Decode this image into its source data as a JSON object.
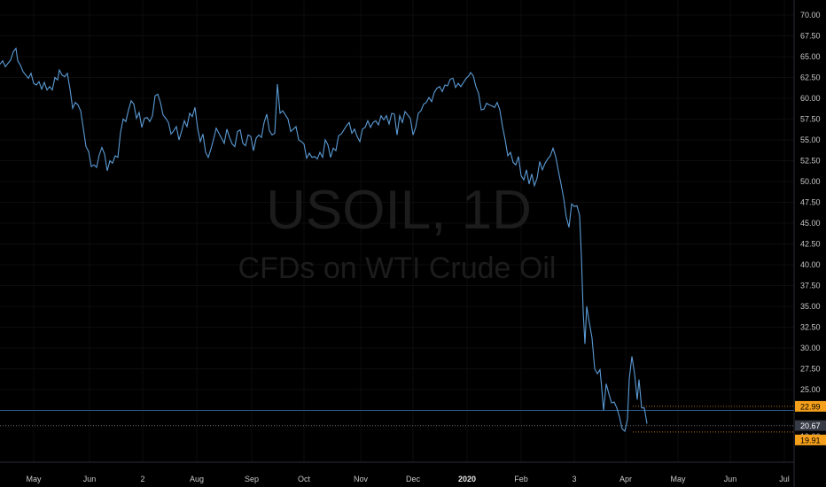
{
  "watermark": {
    "symbol": "USOIL, 1D",
    "description": "CFDs on WTI Crude Oil"
  },
  "colors": {
    "background": "#000000",
    "line": "#5b9bd5",
    "grid": "#0d0d0d",
    "axis_text": "#c8c8c8",
    "badge_orange": "#f5a01a",
    "badge_gray": "#363a45",
    "ray_blue": "#2a5a8f",
    "ray_orange": "#b86e14"
  },
  "chart_data": {
    "type": "line",
    "series": [
      {
        "values": [
          [
            0,
            64.1
          ],
          [
            3,
            64.5
          ],
          [
            6,
            63.8
          ],
          [
            9,
            64.2
          ],
          [
            12,
            64.6
          ],
          [
            15,
            65.6
          ],
          [
            18,
            66.0
          ],
          [
            20,
            64.5
          ],
          [
            23,
            64.0
          ],
          [
            26,
            63.2
          ],
          [
            29,
            62.8
          ],
          [
            32,
            62.4
          ],
          [
            35,
            63.0
          ],
          [
            38,
            61.8
          ],
          [
            41,
            61.6
          ],
          [
            44,
            62.0
          ],
          [
            47,
            61.1
          ],
          [
            50,
            61.9
          ],
          [
            53,
            61.0
          ],
          [
            56,
            61.4
          ],
          [
            59,
            61.0
          ],
          [
            62,
            62.5
          ],
          [
            65,
            62.2
          ],
          [
            67,
            63.4
          ],
          [
            70,
            62.8
          ],
          [
            73,
            62.6
          ],
          [
            76,
            63.0
          ],
          [
            79,
            61.1
          ],
          [
            82,
            58.8
          ],
          [
            85,
            59.5
          ],
          [
            88,
            59.2
          ],
          [
            91,
            58.5
          ],
          [
            94,
            56.4
          ],
          [
            97,
            54.2
          ],
          [
            100,
            53.6
          ],
          [
            103,
            51.8
          ],
          [
            106,
            52.0
          ],
          [
            109,
            51.7
          ],
          [
            112,
            53.2
          ],
          [
            115,
            54.1
          ],
          [
            118,
            53.3
          ],
          [
            121,
            51.3
          ],
          [
            124,
            52.5
          ],
          [
            127,
            52.2
          ],
          [
            130,
            53.1
          ],
          [
            133,
            52.9
          ],
          [
            136,
            55.9
          ],
          [
            139,
            57.5
          ],
          [
            142,
            57.2
          ],
          [
            145,
            58.6
          ],
          [
            148,
            59.7
          ],
          [
            151,
            59.3
          ],
          [
            154,
            57.6
          ],
          [
            157,
            58.3
          ],
          [
            160,
            56.5
          ],
          [
            163,
            57.6
          ],
          [
            166,
            57.7
          ],
          [
            169,
            57.2
          ],
          [
            172,
            57.9
          ],
          [
            175,
            60.3
          ],
          [
            178,
            60.5
          ],
          [
            181,
            59.5
          ],
          [
            184,
            58.0
          ],
          [
            187,
            57.6
          ],
          [
            190,
            57.1
          ],
          [
            193,
            55.7
          ],
          [
            196,
            56.1
          ],
          [
            199,
            56.6
          ],
          [
            202,
            55.0
          ],
          [
            205,
            56.1
          ],
          [
            208,
            57.3
          ],
          [
            211,
            56.6
          ],
          [
            214,
            58.2
          ],
          [
            217,
            57.8
          ],
          [
            220,
            58.9
          ],
          [
            223,
            56.4
          ],
          [
            226,
            54.8
          ],
          [
            229,
            55.7
          ],
          [
            232,
            53.5
          ],
          [
            235,
            52.9
          ],
          [
            238,
            53.9
          ],
          [
            241,
            55.1
          ],
          [
            244,
            56.4
          ],
          [
            247,
            55.8
          ],
          [
            250,
            55.2
          ],
          [
            253,
            54.6
          ],
          [
            256,
            56.3
          ],
          [
            259,
            55.3
          ],
          [
            262,
            54.5
          ],
          [
            265,
            54.2
          ],
          [
            268,
            56.0
          ],
          [
            271,
            56.2
          ],
          [
            274,
            54.6
          ],
          [
            277,
            54.3
          ],
          [
            280,
            55.6
          ],
          [
            283,
            55.4
          ],
          [
            286,
            53.7
          ],
          [
            289,
            55.2
          ],
          [
            292,
            55.6
          ],
          [
            295,
            55.3
          ],
          [
            298,
            57.1
          ],
          [
            301,
            58.1
          ],
          [
            304,
            56.1
          ],
          [
            307,
            55.6
          ],
          [
            310,
            55.8
          ],
          [
            313,
            61.7
          ],
          [
            316,
            58.2
          ],
          [
            319,
            58.5
          ],
          [
            322,
            58.0
          ],
          [
            325,
            57.5
          ],
          [
            328,
            56.0
          ],
          [
            331,
            56.3
          ],
          [
            334,
            56.6
          ],
          [
            337,
            55.0
          ],
          [
            340,
            54.8
          ],
          [
            343,
            54.5
          ],
          [
            346,
            52.8
          ],
          [
            349,
            53.4
          ],
          [
            352,
            52.9
          ],
          [
            355,
            53.0
          ],
          [
            358,
            52.7
          ],
          [
            361,
            53.5
          ],
          [
            364,
            52.9
          ],
          [
            367,
            55.0
          ],
          [
            370,
            54.4
          ],
          [
            373,
            52.9
          ],
          [
            376,
            54.0
          ],
          [
            379,
            53.7
          ],
          [
            382,
            55.5
          ],
          [
            385,
            55.7
          ],
          [
            388,
            56.2
          ],
          [
            391,
            56.7
          ],
          [
            394,
            57.1
          ],
          [
            397,
            55.8
          ],
          [
            400,
            56.3
          ],
          [
            403,
            55.4
          ],
          [
            406,
            54.8
          ],
          [
            409,
            56.3
          ],
          [
            412,
            56.5
          ],
          [
            415,
            57.3
          ],
          [
            418,
            56.5
          ],
          [
            421,
            57.1
          ],
          [
            424,
            57.3
          ],
          [
            427,
            56.8
          ],
          [
            430,
            57.9
          ],
          [
            433,
            57.4
          ],
          [
            436,
            57.9
          ],
          [
            439,
            56.9
          ],
          [
            442,
            58.2
          ],
          [
            445,
            58.1
          ],
          [
            448,
            55.6
          ],
          [
            451,
            57.9
          ],
          [
            454,
            57.1
          ],
          [
            457,
            58.4
          ],
          [
            460,
            58.0
          ],
          [
            463,
            57.6
          ],
          [
            466,
            55.6
          ],
          [
            469,
            56.5
          ],
          [
            472,
            58.2
          ],
          [
            475,
            58.5
          ],
          [
            478,
            59.3
          ],
          [
            481,
            59.5
          ],
          [
            484,
            60.1
          ],
          [
            487,
            59.6
          ],
          [
            490,
            60.7
          ],
          [
            493,
            61.2
          ],
          [
            496,
            61.4
          ],
          [
            499,
            60.8
          ],
          [
            502,
            61.6
          ],
          [
            505,
            61.5
          ],
          [
            508,
            62.3
          ],
          [
            511,
            62.4
          ],
          [
            514,
            61.3
          ],
          [
            517,
            61.8
          ],
          [
            520,
            61.4
          ],
          [
            523,
            61.9
          ],
          [
            526,
            62.4
          ],
          [
            529,
            62.7
          ],
          [
            531,
            63.1
          ],
          [
            534,
            62.7
          ],
          [
            537,
            61.4
          ],
          [
            540,
            60.6
          ],
          [
            543,
            58.6
          ],
          [
            546,
            58.7
          ],
          [
            549,
            59.4
          ],
          [
            552,
            59.2
          ],
          [
            555,
            59.1
          ],
          [
            558,
            58.9
          ],
          [
            561,
            59.5
          ],
          [
            564,
            58.6
          ],
          [
            567,
            56.6
          ],
          [
            570,
            55.0
          ],
          [
            573,
            53.1
          ],
          [
            576,
            53.5
          ],
          [
            579,
            52.3
          ],
          [
            582,
            52.0
          ],
          [
            585,
            53.0
          ],
          [
            588,
            50.7
          ],
          [
            591,
            50.2
          ],
          [
            594,
            51.4
          ],
          [
            597,
            49.7
          ],
          [
            600,
            50.9
          ],
          [
            603,
            49.5
          ],
          [
            606,
            50.4
          ],
          [
            609,
            52.4
          ],
          [
            612,
            51.4
          ],
          [
            615,
            52.2
          ],
          [
            618,
            52.7
          ],
          [
            621,
            53.1
          ],
          [
            624,
            54.0
          ],
          [
            627,
            53.0
          ],
          [
            630,
            51.3
          ],
          [
            633,
            49.7
          ],
          [
            636,
            48.0
          ],
          [
            639,
            45.7
          ],
          [
            642,
            44.5
          ],
          [
            645,
            47.3
          ],
          [
            648,
            47.0
          ],
          [
            651,
            47.1
          ],
          [
            654,
            45.9
          ],
          [
            656,
            41.0
          ],
          [
            658,
            34.4
          ],
          [
            660,
            30.5
          ],
          [
            662,
            35.0
          ],
          [
            665,
            33.0
          ],
          [
            668,
            31.2
          ],
          [
            671,
            27.5
          ],
          [
            674,
            26.9
          ],
          [
            677,
            27.4
          ],
          [
            679,
            25.1
          ],
          [
            681,
            22.5
          ],
          [
            684,
            25.7
          ],
          [
            687,
            24.5
          ],
          [
            690,
            23.4
          ],
          [
            693,
            23.5
          ],
          [
            696,
            22.8
          ],
          [
            699,
            21.7
          ],
          [
            702,
            20.3
          ],
          [
            705,
            20.0
          ],
          [
            708,
            21.4
          ],
          [
            710,
            26.3
          ],
          [
            713,
            29.0
          ],
          [
            716,
            26.9
          ],
          [
            719,
            23.8
          ],
          [
            721,
            26.2
          ],
          [
            724,
            22.8
          ],
          [
            727,
            22.8
          ],
          [
            730,
            20.9
          ]
        ]
      }
    ],
    "x_ticks": [
      "May",
      "Jun",
      "2",
      "Aug",
      "Sep",
      "Oct",
      "Nov",
      "Dec",
      "2020",
      "Feb",
      "3",
      "Apr",
      "May",
      "Jun",
      "Jul"
    ],
    "ylim": [
      18.5,
      71.0
    ],
    "y_ticks": [
      "70.00",
      "67.50",
      "65.00",
      "62.50",
      "60.00",
      "57.50",
      "55.00",
      "52.50",
      "50.00",
      "47.50",
      "45.00",
      "42.50",
      "40.00",
      "37.50",
      "35.00",
      "32.50",
      "30.00",
      "27.50",
      "25.00"
    ],
    "price_labels": [
      {
        "value": 22.99,
        "text": "22.99",
        "style": "orange"
      },
      {
        "value": 20.67,
        "text": "20.67",
        "style": "gray"
      },
      {
        "value": 20.1,
        "text": "19:06",
        "style": "plain"
      },
      {
        "value": 19.91,
        "text": "19.91",
        "style": "orange"
      }
    ],
    "horizontal_lines": [
      {
        "value": 22.5,
        "style": "blue-solid"
      },
      {
        "value": 20.67,
        "style": "gray-dotted"
      },
      {
        "value": 22.99,
        "style": "orange-dotted"
      },
      {
        "value": 19.91,
        "style": "orange-dotted"
      }
    ],
    "grid": true
  }
}
